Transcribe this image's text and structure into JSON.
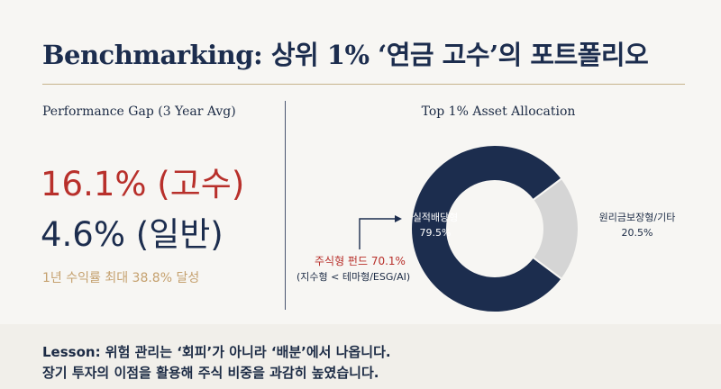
{
  "title": "Benchmarking: 상위 1% ‘연금 고수’의 포트폴리오",
  "left_panel": {
    "heading": "Performance Gap (3 Year Avg)",
    "expert_return": "16.1% (고수)",
    "average_return": "4.6% (일반)",
    "one_year_note": "1년 수익률 최대 38.8% 달성"
  },
  "right_panel": {
    "heading": "Top 1% Asset Allocation"
  },
  "chart_data": {
    "type": "pie",
    "title": "Top 1% Asset Allocation",
    "slices": [
      {
        "label": "실적배당형",
        "value": 79.5,
        "value_label": "79.5%",
        "color": "#1c2d4e"
      },
      {
        "label": "원리금보장형/기타",
        "value": 20.5,
        "value_label": "20.5%",
        "color": "#d5d5d5"
      }
    ],
    "annotation": {
      "line1": "주식형 펀드 70.1%",
      "line2": "(지수형 < 테마형/ESG/AI)"
    }
  },
  "lesson": {
    "line1": "Lesson: 위험 관리는 ‘회피’가 아니라 ‘배분’에서 나옵니다.",
    "line2": "장기 투자의 이점을 활용해 주식 비중을 과감히 높였습니다."
  },
  "colors": {
    "navy": "#1c2d4e",
    "red": "#b8302b",
    "gold": "#c5a16f",
    "grey": "#d5d5d5",
    "rule": "#c7b48c"
  }
}
